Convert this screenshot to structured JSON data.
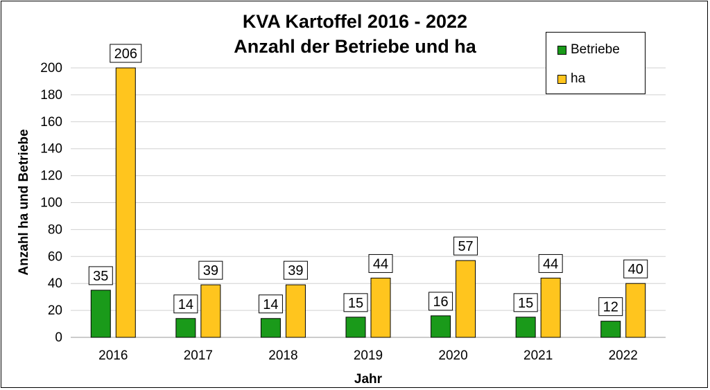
{
  "chart_data": {
    "type": "bar",
    "title": "KVA Kartoffel 2016 - 2022",
    "subtitle": "Anzahl der Betriebe und ha",
    "xlabel": "Jahr",
    "ylabel": "Anzahl ha und Betriebe",
    "categories": [
      "2016",
      "2017",
      "2018",
      "2019",
      "2020",
      "2021",
      "2022"
    ],
    "ylim": [
      0,
      200
    ],
    "yticks": [
      "0",
      "20",
      "40",
      "60",
      "80",
      "100",
      "120",
      "140",
      "160",
      "180",
      "200"
    ],
    "grid": true,
    "legend_position": "top-right",
    "series": [
      {
        "name": "Betriebe",
        "color": "#1a9a1a",
        "values": [
          35,
          14,
          14,
          15,
          16,
          15,
          12
        ]
      },
      {
        "name": "ha",
        "color": "#ffc51e",
        "values": [
          206,
          39,
          39,
          44,
          57,
          44,
          40
        ]
      }
    ]
  }
}
